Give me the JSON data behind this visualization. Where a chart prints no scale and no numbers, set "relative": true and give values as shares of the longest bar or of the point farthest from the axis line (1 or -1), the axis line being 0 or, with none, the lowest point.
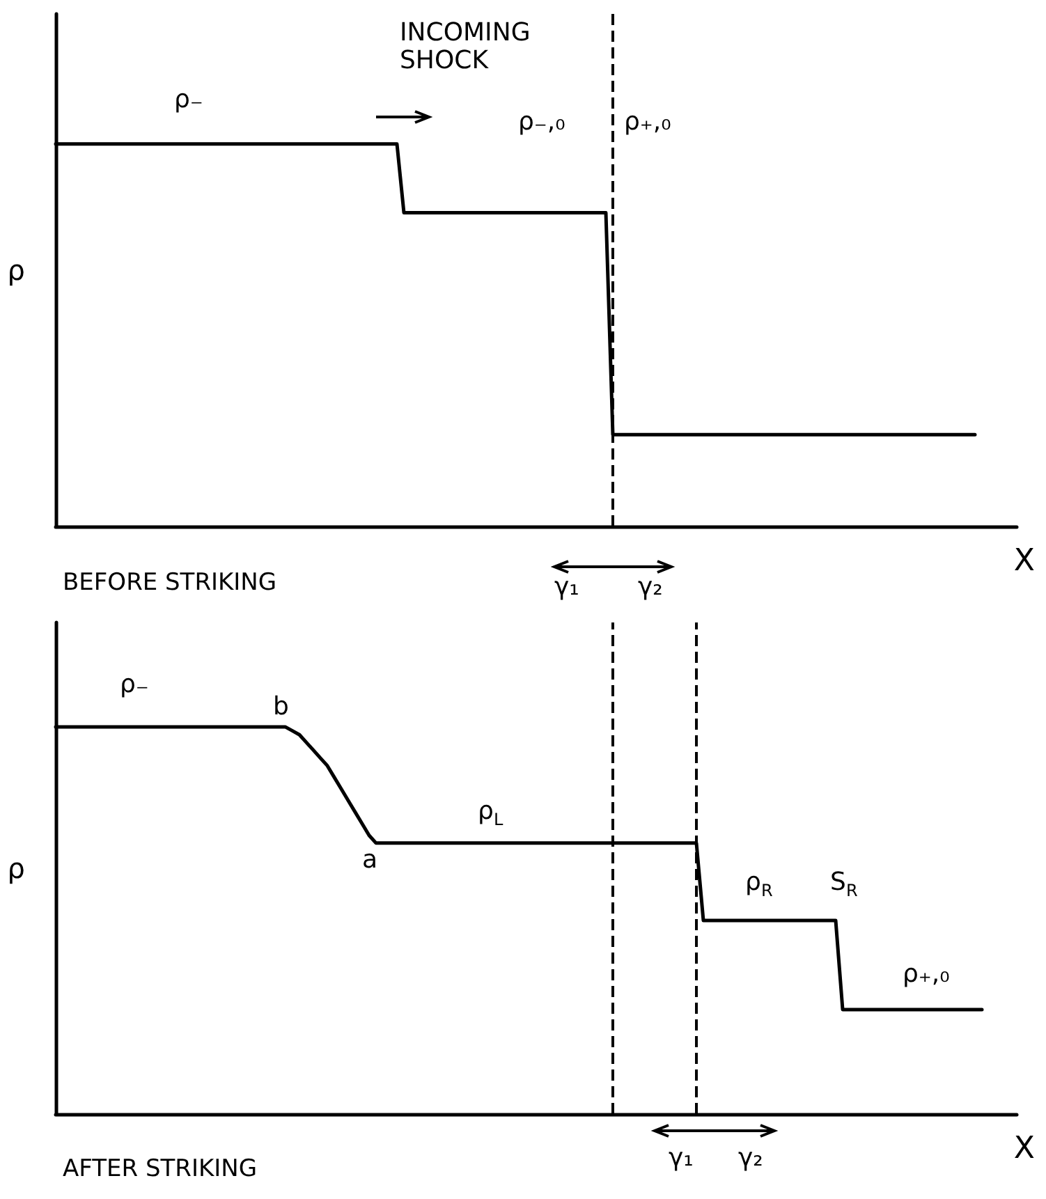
{
  "chart_data": [
    {
      "type": "line",
      "title": "BEFORE STRIKING",
      "xlabel": "X",
      "ylabel": "ρ",
      "relative": true,
      "marker": "none",
      "categories": [
        null,
        null,
        null,
        null,
        null,
        null,
        null,
        null,
        null,
        null,
        null,
        null,
        null,
        null,
        null,
        null,
        null,
        null,
        null,
        null,
        null,
        null,
        null,
        null,
        null,
        null,
        null,
        null,
        null,
        null,
        null,
        null,
        null,
        null,
        null,
        null,
        null,
        null,
        null,
        null,
        null,
        null,
        null,
        null,
        null,
        null,
        null,
        null,
        null,
        null,
        null,
        null,
        null,
        null,
        null,
        null,
        null,
        null,
        null,
        null,
        null,
        null,
        null,
        null,
        null,
        null,
        null,
        null,
        null,
        null,
        null,
        null,
        null,
        null,
        null,
        null,
        null,
        null,
        null,
        null,
        null,
        null,
        null,
        null,
        null,
        null,
        null,
        null,
        null,
        null,
        null,
        null,
        null,
        null,
        null,
        null,
        null,
        null,
        null,
        null,
        null,
        null,
        null,
        null,
        null,
        null,
        null,
        null,
        null,
        null,
        null,
        null,
        null,
        null,
        null,
        null,
        null,
        null,
        null,
        null,
        null,
        null,
        null,
        null,
        null,
        null,
        null,
        null,
        null,
        null,
        null,
        null,
        null,
        null,
        null,
        null,
        null,
        null,
        null
      ],
      "series": [
        {
          "color": "#000000",
          "values": [
            1,
            1,
            1,
            1,
            1,
            1,
            1,
            1,
            1,
            1,
            1,
            1,
            1,
            1,
            1,
            1,
            1,
            1,
            1,
            1,
            1,
            1,
            1,
            1,
            1,
            1,
            1,
            1,
            1,
            1,
            1,
            1,
            1,
            1,
            1,
            1,
            1,
            1,
            1,
            1,
            1,
            1,
            1,
            1,
            1,
            1,
            1,
            1,
            1,
            1,
            0.82,
            0.82,
            0.82,
            0.82,
            0.82,
            0.82,
            0.82,
            0.82,
            0.82,
            0.82,
            0.82,
            0.82,
            0.82,
            0.82,
            0.82,
            0.82,
            0.82,
            0.82,
            0.82,
            0.82,
            0.82,
            0.82,
            0.82,
            0.82,
            0.82,
            0.82,
            0.82,
            0.82,
            0.82,
            0.82,
            0.24,
            0.24,
            0.24,
            0.24,
            0.24,
            0.24,
            0.24,
            0.24,
            0.24,
            0.24,
            0.24,
            0.24,
            0.24,
            0.24,
            0.24,
            0.24,
            0.24,
            0.24,
            0.24,
            0.24,
            0.24,
            0.24,
            0.24,
            0.24,
            0.24,
            0.24,
            0.24,
            0.24,
            0.24,
            0.24,
            0.24,
            0.24,
            0.24,
            0.24,
            0.24,
            0.24,
            0.24,
            0.24,
            0.24,
            0.24,
            0.24,
            0.24,
            0.24,
            0.24,
            0.24,
            0.24,
            0.24,
            0.24,
            0.24,
            0.24,
            0.24,
            0.24,
            0.24,
            null,
            null,
            null,
            null,
            null,
            null
          ]
        }
      ],
      "annotations": [
        "INCOMING\nSHOCK",
        "ρ₋",
        "ρ₋,₀",
        "ρ₊,₀",
        "γ₁",
        "γ₂"
      ]
    },
    {
      "type": "line",
      "title": "AFTER STRIKING",
      "xlabel": "X",
      "ylabel": "ρ",
      "relative": true,
      "marker": "none",
      "categories": [
        null,
        null,
        null,
        null,
        null,
        null,
        null,
        null,
        null,
        null,
        null,
        null,
        null,
        null,
        null,
        null,
        null,
        null,
        null,
        null,
        null,
        null,
        null,
        null,
        null,
        null,
        null,
        null,
        null,
        null,
        null,
        null,
        null,
        null,
        null,
        null,
        null,
        null,
        null,
        null,
        null,
        null,
        null,
        null,
        null,
        null,
        null,
        null,
        null,
        null,
        null,
        null,
        null,
        null,
        null,
        null,
        null,
        null,
        null,
        null,
        null,
        null,
        null,
        null,
        null,
        null,
        null,
        null,
        null,
        null,
        null,
        null,
        null,
        null,
        null,
        null,
        null,
        null,
        null,
        null,
        null,
        null,
        null,
        null,
        null,
        null,
        null,
        null,
        null,
        null,
        null,
        null,
        null,
        null,
        null,
        null,
        null,
        null,
        null,
        null,
        null,
        null,
        null,
        null,
        null,
        null,
        null,
        null,
        null,
        null,
        null,
        null,
        null,
        null,
        null,
        null,
        null,
        null,
        null,
        null,
        null,
        null,
        null,
        null,
        null,
        null,
        null,
        null,
        null,
        null,
        null,
        null,
        null,
        null,
        null,
        null,
        null,
        null,
        null
      ],
      "series": [
        {
          "color": "#000000",
          "values": [
            1,
            1,
            1,
            1,
            1,
            1,
            1,
            1,
            1,
            1,
            1,
            1,
            1,
            1,
            1,
            1,
            1,
            1,
            1,
            1,
            1,
            1,
            1,
            1,
            1,
            1,
            1,
            1,
            1,
            1,
            1,
            1,
            1,
            1,
            0.99,
            0.98,
            0.96,
            0.94,
            0.92,
            0.9,
            0.87,
            0.84,
            0.81,
            0.78,
            0.75,
            0.72,
            0.7,
            0.7,
            0.7,
            0.7,
            0.7,
            0.7,
            0.7,
            0.7,
            0.7,
            0.7,
            0.7,
            0.7,
            0.7,
            0.7,
            0.7,
            0.7,
            0.7,
            0.7,
            0.7,
            0.7,
            0.7,
            0.7,
            0.7,
            0.7,
            0.7,
            0.7,
            0.7,
            0.7,
            0.7,
            0.7,
            0.7,
            0.7,
            0.7,
            0.7,
            0.7,
            0.7,
            0.7,
            0.7,
            0.7,
            0.7,
            0.7,
            0.7,
            0.7,
            0.7,
            0.7,
            0.7,
            0.7,
            0.5,
            0.5,
            0.5,
            0.5,
            0.5,
            0.5,
            0.5,
            0.5,
            0.5,
            0.5,
            0.5,
            0.5,
            0.5,
            0.5,
            0.5,
            0.5,
            0.5,
            0.5,
            0.5,
            0.5,
            0.27,
            0.27,
            0.27,
            0.27,
            0.27,
            0.27,
            0.27,
            0.27,
            0.27,
            0.27,
            0.27,
            0.27,
            0.27,
            0.27,
            0.27,
            0.27,
            0.27,
            0.27,
            0.27,
            0.27,
            0.27,
            null,
            null,
            null,
            null,
            null
          ]
        }
      ],
      "annotations": [
        "ρ₋",
        "b",
        "a",
        "ρ$_{L}$",
        "ρ$_{R}$",
        "S$_{R}$",
        "ρ₊,₀",
        "γ₁",
        "γ₂"
      ]
    }
  ]
}
